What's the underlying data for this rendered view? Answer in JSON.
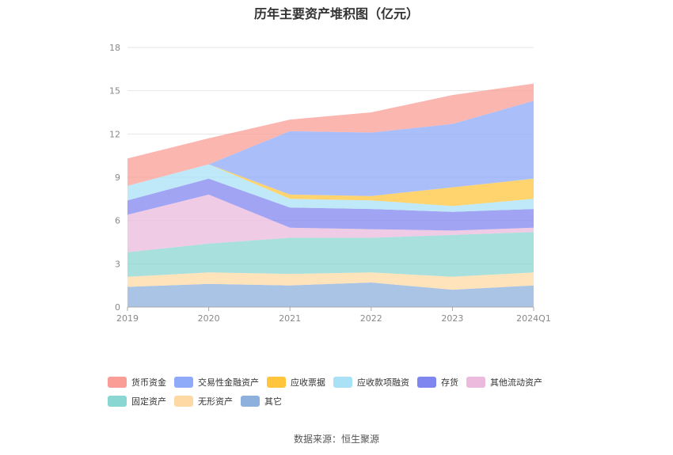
{
  "chart_data": {
    "type": "area",
    "stacked": true,
    "title": "历年主要资产堆积图（亿元）",
    "categories": [
      "2019",
      "2020",
      "2021",
      "2022",
      "2023",
      "2024Q1"
    ],
    "yticks": [
      "0",
      "3",
      "6",
      "9",
      "12",
      "15",
      "18"
    ],
    "ylim": [
      0,
      18
    ],
    "grid": true,
    "legend_position": "bottom",
    "series": [
      {
        "name": "其它",
        "color": "#8eb0dc",
        "values": [
          1.4,
          1.6,
          1.5,
          1.7,
          1.2,
          1.5
        ]
      },
      {
        "name": "无形资产",
        "color": "#ffd9a3",
        "values": [
          0.7,
          0.8,
          0.8,
          0.7,
          0.9,
          0.9
        ]
      },
      {
        "name": "固定资产",
        "color": "#89d6d2",
        "values": [
          1.7,
          2.0,
          2.5,
          2.4,
          2.9,
          2.8
        ]
      },
      {
        "name": "其他流动资产",
        "color": "#ebbadc",
        "values": [
          2.6,
          3.4,
          0.7,
          0.6,
          0.3,
          0.3
        ]
      },
      {
        "name": "存货",
        "color": "#8086ef",
        "values": [
          1.0,
          1.1,
          1.4,
          1.4,
          1.3,
          1.3
        ]
      },
      {
        "name": "应收款项融资",
        "color": "#a9e1f7",
        "values": [
          1.0,
          1.0,
          0.6,
          0.6,
          0.4,
          0.7
        ]
      },
      {
        "name": "应收票据",
        "color": "#ffc53d",
        "values": [
          0.0,
          0.0,
          0.3,
          0.3,
          1.3,
          1.4
        ]
      },
      {
        "name": "交易性金融资产",
        "color": "#8eaaf8",
        "values": [
          0.0,
          0.0,
          4.4,
          4.4,
          4.4,
          5.4
        ]
      },
      {
        "name": "货币资金",
        "color": "#fa9d96",
        "values": [
          1.9,
          1.8,
          0.8,
          1.4,
          2.0,
          1.2
        ]
      }
    ],
    "source": "数据来源：恒生聚源"
  },
  "legend": {
    "row1": [
      "货币资金",
      "交易性金融资产",
      "应收票据",
      "应收款项融资",
      "存货",
      "其他流动资产"
    ],
    "row2": [
      "固定资产",
      "无形资产",
      "其它"
    ],
    "colors": {
      "货币资金": "#fa9d96",
      "交易性金融资产": "#8eaaf8",
      "应收票据": "#ffc53d",
      "应收款项融资": "#a9e1f7",
      "存货": "#8086ef",
      "其他流动资产": "#ebbadc",
      "固定资产": "#89d6d2",
      "无形资产": "#ffd9a3",
      "其它": "#8eb0dc"
    }
  }
}
